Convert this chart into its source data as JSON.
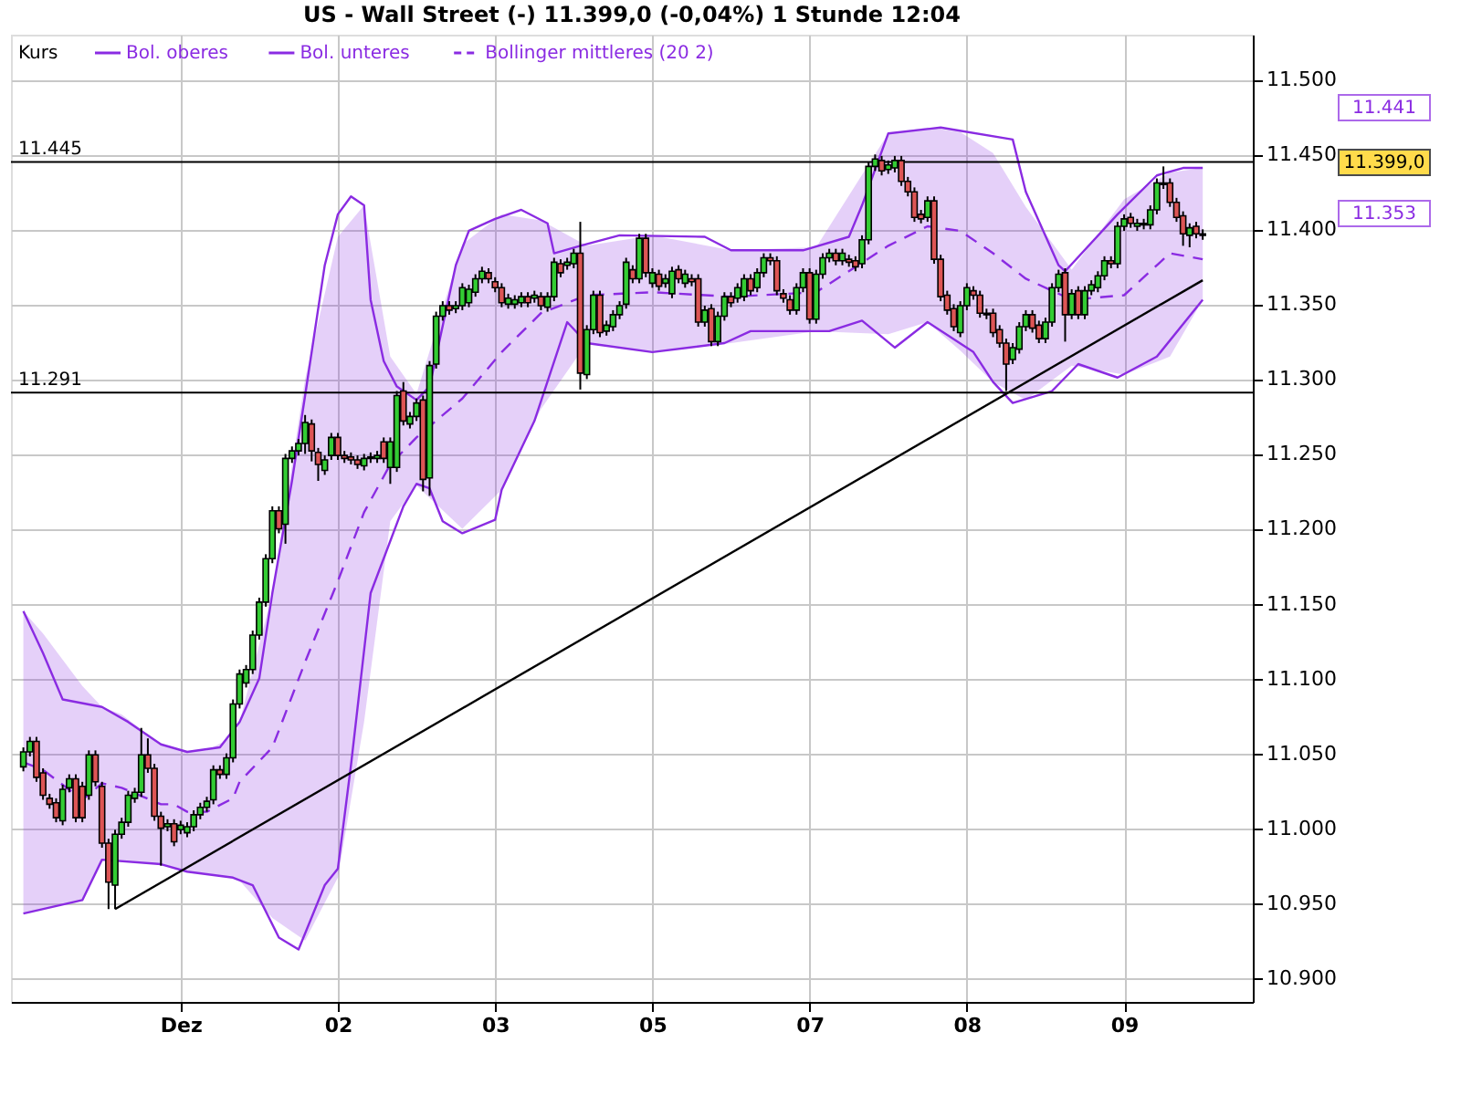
{
  "chart_data": {
    "type": "candlestick",
    "title": "US - Wall Street (-) 11.399,0 (-0,04%) 1 Stunde 12:04",
    "legend_title": "Kurs",
    "legend": "top left",
    "grid": true,
    "ylim": [
      10884,
      11530
    ],
    "yticks": [
      {
        "value": 10900,
        "label": "10.900"
      },
      {
        "value": 10950,
        "label": "10.950"
      },
      {
        "value": 11000,
        "label": "11.000"
      },
      {
        "value": 11050,
        "label": "11.050"
      },
      {
        "value": 11100,
        "label": "11.100"
      },
      {
        "value": 11150,
        "label": "11.150"
      },
      {
        "value": 11200,
        "label": "11.200"
      },
      {
        "value": 11250,
        "label": "11.250"
      },
      {
        "value": 11300,
        "label": "11.300"
      },
      {
        "value": 11350,
        "label": "11.350"
      },
      {
        "value": 11400,
        "label": "11.400"
      },
      {
        "value": 11450,
        "label": "11.450"
      },
      {
        "value": 11500,
        "label": "11.500"
      }
    ],
    "categories": [
      null,
      null,
      null,
      null,
      null,
      null,
      null,
      null,
      null,
      null,
      null,
      null,
      null,
      null,
      null,
      null,
      null,
      null,
      null,
      null,
      null,
      null,
      null,
      null,
      "Dez",
      null,
      null,
      null,
      null,
      null,
      null,
      null,
      null,
      null,
      null,
      null,
      null,
      null,
      null,
      null,
      null,
      null,
      null,
      null,
      null,
      null,
      null,
      null,
      "02",
      null,
      null,
      null,
      null,
      null,
      null,
      null,
      null,
      null,
      null,
      null,
      null,
      null,
      null,
      null,
      null,
      null,
      null,
      null,
      null,
      null,
      null,
      null,
      "03",
      null,
      null,
      null,
      null,
      null,
      null,
      null,
      null,
      null,
      null,
      null,
      null,
      null,
      null,
      null,
      null,
      null,
      null,
      null,
      null,
      null,
      null,
      null,
      "05",
      null,
      null,
      null,
      null,
      null,
      null,
      null,
      null,
      null,
      null,
      null,
      null,
      null,
      null,
      null,
      null,
      null,
      null,
      null,
      null,
      null,
      null,
      null,
      "07",
      null,
      null,
      null,
      null,
      null,
      null,
      null,
      null,
      null,
      null,
      null,
      null,
      null,
      null,
      null,
      null,
      null,
      null,
      null,
      null,
      null,
      null,
      null,
      "08",
      null,
      null,
      null,
      null,
      null,
      null,
      null,
      null,
      null,
      null,
      null,
      null,
      null,
      null,
      null,
      null,
      null,
      null,
      null,
      null,
      null,
      null,
      null,
      "09",
      null,
      null,
      null,
      null,
      null,
      null,
      null,
      null,
      null,
      null,
      null,
      null
    ],
    "ohlc": [
      [
        11041,
        11054,
        11038,
        11051
      ],
      [
        11051,
        11061,
        11048,
        11058
      ],
      [
        11058,
        11061,
        11031,
        11034
      ],
      [
        11037,
        11040,
        11019,
        11022
      ],
      [
        11020,
        11023,
        11013,
        11016
      ],
      [
        11017,
        11020,
        11004,
        11007
      ],
      [
        11005,
        11029,
        11002,
        11026
      ],
      [
        11027,
        11036,
        11024,
        11033
      ],
      [
        11033,
        11036,
        11004,
        11007
      ],
      [
        11028,
        11031,
        11004,
        11007
      ],
      [
        11022,
        11052,
        11019,
        11049
      ],
      [
        11049,
        11052,
        11028,
        11031
      ],
      [
        11028,
        11031,
        10987,
        10990
      ],
      [
        10990,
        10993,
        10946,
        10964
      ],
      [
        10962,
        10999,
        10946,
        10996
      ],
      [
        10996,
        11007,
        10993,
        11004
      ],
      [
        11004,
        11025,
        11001,
        11022
      ],
      [
        11020,
        11027,
        11017,
        11024
      ],
      [
        11024,
        11067,
        11021,
        11049
      ],
      [
        11049,
        11060,
        11037,
        11040
      ],
      [
        11040,
        11043,
        11005,
        11008
      ],
      [
        11008,
        11011,
        10975,
        11000
      ],
      [
        11001,
        11006,
        10998,
        11003
      ],
      [
        11003,
        11006,
        10988,
        10991
      ],
      [
        10999,
        11005,
        10996,
        11002
      ],
      [
        10997,
        11004,
        10994,
        11001
      ],
      [
        11001,
        11012,
        10998,
        11009
      ],
      [
        11009,
        11017,
        11006,
        11014
      ],
      [
        11014,
        11021,
        11011,
        11018
      ],
      [
        11019,
        11042,
        11016,
        11039
      ],
      [
        11039,
        11042,
        11033,
        11036
      ],
      [
        11036,
        11050,
        11033,
        11047
      ],
      [
        11047,
        11086,
        11044,
        11083
      ],
      [
        11083,
        11106,
        11080,
        11103
      ],
      [
        11097,
        11109,
        11094,
        11106
      ],
      [
        11106,
        11132,
        11103,
        11129
      ],
      [
        11129,
        11154,
        11126,
        11151
      ],
      [
        11151,
        11183,
        11148,
        11180
      ],
      [
        11180,
        11215,
        11177,
        11212
      ],
      [
        11212,
        11215,
        11197,
        11200
      ],
      [
        11203,
        11250,
        11190,
        11247
      ],
      [
        11247,
        11255,
        11244,
        11252
      ],
      [
        11252,
        11260,
        11249,
        11257
      ],
      [
        11257,
        11276,
        11250,
        11271
      ],
      [
        11270,
        11273,
        11245,
        11252
      ],
      [
        11251,
        11254,
        11232,
        11243
      ],
      [
        11239,
        11249,
        11236,
        11246
      ],
      [
        11249,
        11264,
        11246,
        11261
      ],
      [
        11261,
        11264,
        11246,
        11249
      ],
      [
        11249,
        11252,
        11244,
        11247
      ],
      [
        11248,
        11251,
        11243,
        11246
      ],
      [
        11246,
        11249,
        11240,
        11243
      ],
      [
        11242,
        11250,
        11239,
        11247
      ],
      [
        11247,
        11251,
        11244,
        11248
      ],
      [
        11247,
        11252,
        11244,
        11249
      ],
      [
        11258,
        11261,
        11244,
        11247
      ],
      [
        11241,
        11261,
        11230,
        11258
      ],
      [
        11241,
        11292,
        11238,
        11289
      ],
      [
        11292,
        11298,
        11269,
        11272
      ],
      [
        11270,
        11278,
        11267,
        11275
      ],
      [
        11275,
        11287,
        11272,
        11284
      ],
      [
        11286,
        11289,
        11225,
        11233
      ],
      [
        11234,
        11312,
        11222,
        11309
      ],
      [
        11310,
        11345,
        11307,
        11342
      ],
      [
        11342,
        11352,
        11339,
        11349
      ],
      [
        11349,
        11352,
        11343,
        11346
      ],
      [
        11347,
        11352,
        11344,
        11349
      ],
      [
        11349,
        11364,
        11346,
        11361
      ],
      [
        11351,
        11363,
        11348,
        11360
      ],
      [
        11358,
        11370,
        11355,
        11367
      ],
      [
        11367,
        11375,
        11364,
        11372
      ],
      [
        11371,
        11374,
        11364,
        11367
      ],
      [
        11365,
        11368,
        11358,
        11361
      ],
      [
        11361,
        11364,
        11348,
        11351
      ],
      [
        11350,
        11357,
        11347,
        11354
      ],
      [
        11350,
        11356,
        11347,
        11353
      ],
      [
        11351,
        11358,
        11348,
        11355
      ],
      [
        11355,
        11358,
        11348,
        11351
      ],
      [
        11354,
        11359,
        11351,
        11356
      ],
      [
        11355,
        11358,
        11346,
        11349
      ],
      [
        11348,
        11358,
        11345,
        11355
      ],
      [
        11355,
        11381,
        11352,
        11378
      ],
      [
        11377,
        11380,
        11368,
        11371
      ],
      [
        11376,
        11381,
        11373,
        11378
      ],
      [
        11377,
        11387,
        11374,
        11384
      ],
      [
        11384,
        11405,
        11293,
        11304
      ],
      [
        11303,
        11336,
        11300,
        11333
      ],
      [
        11333,
        11359,
        11330,
        11356
      ],
      [
        11356,
        11359,
        11328,
        11331
      ],
      [
        11332,
        11339,
        11329,
        11336
      ],
      [
        11335,
        11346,
        11332,
        11343
      ],
      [
        11343,
        11352,
        11340,
        11349
      ],
      [
        11350,
        11381,
        11347,
        11378
      ],
      [
        11373,
        11376,
        11364,
        11367
      ],
      [
        11367,
        11397,
        11364,
        11394
      ],
      [
        11394,
        11397,
        11368,
        11371
      ],
      [
        11364,
        11374,
        11361,
        11371
      ],
      [
        11370,
        11373,
        11359,
        11362
      ],
      [
        11364,
        11370,
        11361,
        11367
      ],
      [
        11357,
        11375,
        11354,
        11372
      ],
      [
        11373,
        11376,
        11364,
        11367
      ],
      [
        11364,
        11373,
        11361,
        11370
      ],
      [
        11367,
        11370,
        11362,
        11365
      ],
      [
        11367,
        11370,
        11335,
        11338
      ],
      [
        11338,
        11349,
        11335,
        11346
      ],
      [
        11347,
        11350,
        11322,
        11325
      ],
      [
        11325,
        11345,
        11322,
        11342
      ],
      [
        11342,
        11358,
        11339,
        11355
      ],
      [
        11355,
        11358,
        11348,
        11351
      ],
      [
        11354,
        11364,
        11351,
        11361
      ],
      [
        11355,
        11370,
        11352,
        11367
      ],
      [
        11367,
        11370,
        11356,
        11359
      ],
      [
        11361,
        11374,
        11358,
        11371
      ],
      [
        11371,
        11384,
        11368,
        11381
      ],
      [
        11381,
        11384,
        11376,
        11379
      ],
      [
        11379,
        11382,
        11356,
        11359
      ],
      [
        11357,
        11360,
        11351,
        11354
      ],
      [
        11353,
        11356,
        11343,
        11346
      ],
      [
        11346,
        11364,
        11343,
        11361
      ],
      [
        11361,
        11374,
        11358,
        11371
      ],
      [
        11371,
        11374,
        11337,
        11340
      ],
      [
        11340,
        11373,
        11337,
        11370
      ],
      [
        11370,
        11384,
        11367,
        11381
      ],
      [
        11381,
        11387,
        11378,
        11384
      ],
      [
        11384,
        11387,
        11376,
        11379
      ],
      [
        11379,
        11387,
        11376,
        11384
      ],
      [
        11380,
        11383,
        11375,
        11378
      ],
      [
        11379,
        11382,
        11372,
        11375
      ],
      [
        11377,
        11396,
        11374,
        11393
      ],
      [
        11393,
        11445,
        11390,
        11442
      ],
      [
        11442,
        11450,
        11439,
        11447
      ],
      [
        11446,
        11449,
        11436,
        11439
      ],
      [
        11440,
        11446,
        11437,
        11443
      ],
      [
        11441,
        11449,
        11438,
        11446
      ],
      [
        11446,
        11449,
        11429,
        11432
      ],
      [
        11432,
        11435,
        11422,
        11425
      ],
      [
        11425,
        11428,
        11405,
        11408
      ],
      [
        11410,
        11413,
        11404,
        11407
      ],
      [
        11408,
        11422,
        11405,
        11419
      ],
      [
        11419,
        11422,
        11377,
        11380
      ],
      [
        11380,
        11383,
        11352,
        11355
      ],
      [
        11356,
        11359,
        11343,
        11346
      ],
      [
        11347,
        11350,
        11332,
        11335
      ],
      [
        11331,
        11352,
        11328,
        11349
      ],
      [
        11349,
        11364,
        11346,
        11361
      ],
      [
        11359,
        11362,
        11353,
        11356
      ],
      [
        11356,
        11359,
        11341,
        11344
      ],
      [
        11343,
        11347,
        11340,
        11344
      ],
      [
        11344,
        11347,
        11328,
        11331
      ],
      [
        11333,
        11336,
        11321,
        11324
      ],
      [
        11324,
        11327,
        11292,
        11310
      ],
      [
        11313,
        11324,
        11310,
        11321
      ],
      [
        11320,
        11338,
        11317,
        11335
      ],
      [
        11335,
        11346,
        11332,
        11343
      ],
      [
        11343,
        11346,
        11331,
        11334
      ],
      [
        11336,
        11339,
        11324,
        11327
      ],
      [
        11327,
        11341,
        11324,
        11338
      ],
      [
        11338,
        11364,
        11335,
        11361
      ],
      [
        11361,
        11373,
        11358,
        11370
      ],
      [
        11371,
        11374,
        11325,
        11343
      ],
      [
        11343,
        11360,
        11340,
        11357
      ],
      [
        11359,
        11362,
        11340,
        11343
      ],
      [
        11343,
        11362,
        11340,
        11359
      ],
      [
        11359,
        11366,
        11356,
        11363
      ],
      [
        11361,
        11372,
        11358,
        11369
      ],
      [
        11369,
        11382,
        11366,
        11379
      ],
      [
        11379,
        11382,
        11374,
        11377
      ],
      [
        11377,
        11405,
        11374,
        11402
      ],
      [
        11402,
        11410,
        11399,
        11407
      ],
      [
        11408,
        11411,
        11401,
        11404
      ],
      [
        11402,
        11407,
        11399,
        11404
      ],
      [
        11404,
        11407,
        11400,
        11403
      ],
      [
        11403,
        11416,
        11400,
        11413
      ],
      [
        11413,
        11434,
        11410,
        11431
      ],
      [
        11431,
        11442,
        11427,
        11430
      ],
      [
        11431,
        11434,
        11415,
        11418
      ],
      [
        11418,
        11421,
        11405,
        11408
      ],
      [
        11409,
        11412,
        11389,
        11397
      ],
      [
        11396,
        11404,
        11388,
        11401
      ],
      [
        11402,
        11405,
        11394,
        11397
      ],
      [
        11397,
        11400,
        11393,
        11396
      ]
    ],
    "series": [
      {
        "name": "Bol. oberes",
        "type": "line",
        "color": "#8a2be2",
        "line_style": "solid",
        "values": [
          11145,
          null,
          null,
          11117,
          null,
          null,
          11086,
          null,
          null,
          null,
          null,
          null,
          11081,
          null,
          null,
          null,
          11071,
          null,
          null,
          null,
          null,
          11056,
          null,
          null,
          null,
          11051,
          null,
          null,
          null,
          null,
          11054,
          null,
          null,
          11071,
          null,
          null,
          11100,
          null,
          11157,
          null,
          null,
          11232,
          null,
          11289,
          null,
          null,
          11376,
          null,
          11410,
          null,
          11422,
          null,
          11416,
          11353,
          null,
          11312,
          null,
          11295,
          null,
          null,
          11286,
          null,
          11295,
          null,
          null,
          null,
          11376,
          null,
          11399,
          null,
          null,
          null,
          11407,
          null,
          null,
          null,
          11413,
          null,
          null,
          null,
          11404,
          11384,
          null,
          null,
          null,
          11389,
          null,
          null,
          null,
          null,
          null,
          11396,
          null,
          null,
          null,
          null,
          null,
          null,
          null,
          null,
          null,
          null,
          null,
          null,
          11395,
          null,
          null,
          null,
          11386,
          null,
          null,
          null,
          null,
          null,
          null,
          null,
          null,
          null,
          null,
          11386,
          null,
          null,
          null,
          null,
          null,
          null,
          11395,
          null,
          11416,
          null,
          null,
          null,
          11464,
          null,
          null,
          null,
          null,
          null,
          null,
          null,
          11468,
          null,
          null,
          null,
          null,
          null,
          null,
          null,
          null,
          null,
          null,
          11460,
          null,
          11425,
          null,
          null,
          null,
          null,
          11376,
          11372,
          null,
          null,
          null,
          null,
          null,
          null,
          null,
          11410,
          null,
          null,
          null,
          null,
          null,
          11436,
          null,
          null,
          null,
          11441,
          null,
          null,
          11441
        ]
      },
      {
        "name": "Bol. unteres",
        "type": "line",
        "color": "#8a2be2",
        "line_style": "solid",
        "values": [
          10943,
          null,
          null,
          null,
          null,
          null,
          null,
          null,
          null,
          10952,
          null,
          null,
          10979,
          null,
          null,
          null,
          null,
          null,
          null,
          null,
          null,
          10976,
          null,
          null,
          null,
          10971,
          null,
          null,
          null,
          null,
          null,
          null,
          10967,
          null,
          null,
          10962,
          null,
          null,
          null,
          10927,
          null,
          null,
          10919,
          null,
          null,
          null,
          10962,
          null,
          10973,
          null,
          11042,
          null,
          null,
          11157,
          null,
          null,
          null,
          null,
          11215,
          null,
          11230,
          null,
          11227,
          null,
          11205,
          null,
          null,
          11197,
          null,
          null,
          null,
          null,
          11206,
          11226,
          null,
          null,
          null,
          null,
          11272,
          null,
          null,
          null,
          null,
          11338,
          null,
          null,
          11324,
          null,
          null,
          null,
          null,
          null,
          null,
          null,
          null,
          null,
          11318,
          null,
          null,
          null,
          null,
          null,
          null,
          null,
          null,
          null,
          null,
          11324,
          null,
          null,
          null,
          11332,
          null,
          null,
          null,
          null,
          null,
          null,
          null,
          null,
          null,
          null,
          null,
          11332,
          null,
          null,
          null,
          null,
          11339,
          null,
          null,
          null,
          null,
          11321,
          null,
          null,
          null,
          null,
          11338,
          null,
          null,
          null,
          null,
          null,
          null,
          11318,
          null,
          null,
          11298,
          null,
          null,
          11284,
          null,
          null,
          null,
          null,
          null,
          11292,
          null,
          null,
          null,
          11310,
          null,
          null,
          null,
          null,
          null,
          11301,
          null,
          null,
          null,
          null,
          null,
          11315,
          null,
          null,
          null,
          null,
          null,
          null,
          11353
        ]
      },
      {
        "name": "Bollinger mittleres (20 2)",
        "type": "line",
        "color": "#8a2be2",
        "line_style": "dashed",
        "values": [
          11044,
          null,
          null,
          11039,
          null,
          null,
          null,
          null,
          null,
          11019,
          null,
          null,
          11030,
          null,
          null,
          11027,
          null,
          null,
          null,
          null,
          null,
          11016,
          null,
          11016,
          null,
          11011,
          null,
          null,
          11011,
          null,
          null,
          null,
          11020,
          11031,
          null,
          null,
          null,
          null,
          11054,
          null,
          null,
          null,
          null,
          11111,
          null,
          null,
          null,
          null,
          11165,
          null,
          null,
          null,
          11211,
          null,
          null,
          null,
          11243,
          null,
          null,
          null,
          11261,
          null,
          null,
          null,
          null,
          null,
          null,
          11287,
          null,
          null,
          null,
          null,
          null,
          11318,
          null,
          null,
          null,
          null,
          null,
          11344,
          null,
          null,
          null,
          null,
          null,
          null,
          11356,
          null,
          null,
          null,
          null,
          null,
          null,
          null,
          null,
          null,
          11358,
          null,
          null,
          null,
          null,
          null,
          null,
          null,
          null,
          null,
          null,
          null,
          11355,
          null,
          null,
          null,
          null,
          null,
          null,
          null,
          null,
          null,
          null,
          null,
          null,
          11358,
          null,
          null,
          null,
          null,
          null,
          null,
          null,
          null,
          null,
          null,
          11389,
          null,
          null,
          null,
          null,
          null,
          11402,
          null,
          null,
          null,
          null,
          11399,
          null,
          null,
          null,
          null,
          11384,
          null,
          null,
          null,
          null,
          11367,
          null,
          null,
          null,
          null,
          null,
          null,
          11353,
          null,
          null,
          null,
          null,
          null,
          null,
          null,
          11356,
          null,
          null,
          null,
          null,
          null,
          null,
          11384,
          null,
          null,
          null,
          null,
          11380
        ],
        "lower": [
          10943,
          null,
          null,
          10946,
          null,
          null,
          null,
          null,
          null,
          10952,
          null,
          null,
          10979,
          null,
          null,
          10978,
          null,
          null,
          null,
          null,
          null,
          10976,
          null,
          10974,
          null,
          10971,
          null,
          null,
          10970,
          null,
          null,
          null,
          10967,
          10965,
          null,
          null,
          null,
          null,
          10940,
          null,
          null,
          null,
          null,
          10925,
          null,
          null,
          null,
          null,
          10967,
          null,
          null,
          null,
          11071,
          null,
          null,
          null,
          11205,
          null,
          null,
          null,
          11229,
          null,
          null,
          null,
          null,
          null,
          null,
          11200,
          null,
          null,
          null,
          null,
          null,
          11226,
          null,
          null,
          null,
          null,
          null,
          11280,
          null,
          null,
          null,
          null,
          null,
          null,
          11324,
          null,
          null,
          null,
          null,
          null,
          null,
          null,
          null,
          null,
          11318,
          null,
          null,
          null,
          null,
          null,
          null,
          null,
          null,
          null,
          null,
          null,
          11324,
          null,
          null,
          null,
          null,
          null,
          null,
          null,
          null,
          null,
          null,
          null,
          null,
          11332,
          null,
          null,
          null,
          null,
          null,
          null,
          null,
          null,
          null,
          null,
          11330,
          null,
          null,
          null,
          null,
          null,
          11338,
          null,
          null,
          null,
          null,
          11319,
          null,
          null,
          null,
          null,
          11298,
          null,
          null,
          null,
          null,
          11286,
          null,
          null,
          null,
          null,
          null,
          null,
          11309,
          null,
          null,
          null,
          null,
          null,
          null,
          null,
          11303,
          null,
          null,
          null,
          null,
          null,
          null,
          11315,
          null,
          null,
          null,
          null,
          11353
        ],
        "upper": [
          11145,
          null,
          null,
          11130,
          null,
          null,
          null,
          null,
          null,
          11095,
          null,
          null,
          11081,
          null,
          null,
          11076,
          null,
          null,
          null,
          null,
          null,
          11056,
          null,
          11053,
          null,
          11051,
          null,
          null,
          11052,
          null,
          null,
          null,
          11061,
          11071,
          null,
          null,
          null,
          null,
          11157,
          null,
          null,
          null,
          null,
          11300,
          null,
          null,
          null,
          null,
          11395,
          null,
          null,
          null,
          11416,
          null,
          null,
          null,
          11315,
          null,
          null,
          null,
          11290,
          null,
          null,
          null,
          null,
          null,
          null,
          11390,
          null,
          null,
          null,
          null,
          null,
          11410,
          null,
          null,
          null,
          null,
          null,
          11406,
          null,
          null,
          null,
          null,
          null,
          null,
          11389,
          null,
          null,
          null,
          null,
          null,
          null,
          null,
          null,
          null,
          11396,
          null,
          null,
          null,
          null,
          null,
          null,
          null,
          null,
          null,
          null,
          null,
          11386,
          null,
          null,
          null,
          null,
          null,
          null,
          null,
          null,
          null,
          null,
          null,
          null,
          11388,
          null,
          null,
          null,
          null,
          null,
          null,
          null,
          null,
          null,
          null,
          11464,
          null,
          null,
          null,
          null,
          null,
          11468,
          null,
          null,
          null,
          null,
          11465,
          null,
          null,
          null,
          null,
          11451,
          null,
          null,
          null,
          null,
          11415,
          null,
          null,
          null,
          null,
          null,
          null,
          11373,
          null,
          null,
          null,
          null,
          null,
          null,
          null,
          11420,
          null,
          null,
          null,
          null,
          null,
          null,
          11438,
          null,
          null,
          null,
          null,
          11441
        ]
      },
      {
        "type": "line",
        "color": "#000000",
        "line_style": "solid",
        "values": [
          null,
          null,
          null,
          null,
          null,
          null,
          null,
          null,
          null,
          null,
          null,
          null,
          null,
          null,
          10946,
          null,
          null,
          null,
          null,
          null,
          null,
          null,
          null,
          null,
          null,
          null,
          null,
          null,
          null,
          null,
          null,
          null,
          null,
          null,
          null,
          null,
          null,
          null,
          null,
          null,
          null,
          null,
          null,
          null,
          null,
          null,
          null,
          null,
          null,
          null,
          null,
          null,
          null,
          null,
          null,
          null,
          null,
          null,
          null,
          null,
          null,
          null,
          null,
          null,
          null,
          null,
          null,
          null,
          null,
          null,
          null,
          null,
          null,
          null,
          null,
          null,
          null,
          null,
          null,
          null,
          null,
          null,
          null,
          null,
          null,
          null,
          null,
          null,
          null,
          null,
          null,
          null,
          null,
          null,
          null,
          null,
          null,
          null,
          null,
          null,
          null,
          null,
          null,
          null,
          null,
          null,
          null,
          null,
          null,
          null,
          null,
          null,
          null,
          null,
          null,
          null,
          null,
          null,
          null,
          null,
          null,
          null,
          null,
          null,
          null,
          null,
          null,
          null,
          null,
          null,
          null,
          null,
          null,
          null,
          null,
          null,
          null,
          null,
          null,
          null,
          null,
          null,
          null,
          null,
          null,
          null,
          null,
          null,
          null,
          null,
          null,
          null,
          null,
          null,
          null,
          null,
          null,
          null,
          null,
          null,
          null,
          null,
          null,
          null,
          null,
          null,
          null,
          null,
          null,
          null,
          null,
          null,
          null,
          null,
          null,
          null,
          null,
          null,
          null,
          null,
          11366
        ]
      }
    ],
    "ref_lines": [
      {
        "axis": "y",
        "value": 11445,
        "label": "11.445",
        "color": "#000000"
      },
      {
        "axis": "y",
        "value": 11291,
        "label": "11.291",
        "color": "#000000"
      }
    ],
    "annotations": [
      "11.441",
      "11.399,0",
      "11.353"
    ]
  }
}
